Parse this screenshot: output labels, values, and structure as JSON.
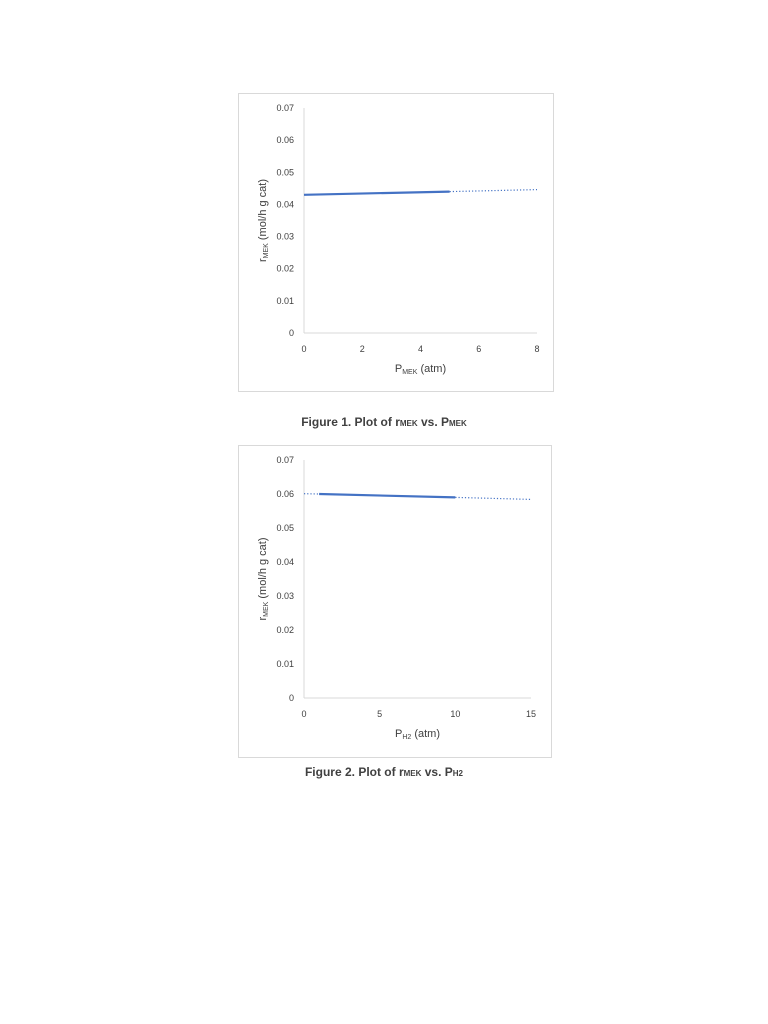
{
  "chart_data": [
    {
      "type": "line",
      "xlabel": {
        "main": "P",
        "sub": "MEK",
        "tail": " (atm)"
      },
      "ylabel": {
        "main": "r",
        "sub": "MEK",
        "tail": " (mol/h g cat)"
      },
      "xlim": [
        0,
        8
      ],
      "ylim": [
        0,
        0.07
      ],
      "x_ticks": [
        "0",
        "2",
        "4",
        "6",
        "8"
      ],
      "y_ticks": [
        "0",
        "0.01",
        "0.02",
        "0.03",
        "0.04",
        "0.05",
        "0.06",
        "0.07"
      ],
      "grid": false,
      "legend": "none",
      "series": [
        {
          "style": "solid",
          "color": "#4472c4",
          "x": [
            0,
            5
          ],
          "y": [
            0.043,
            0.044
          ]
        },
        {
          "style": "dotted",
          "color": "#4472c4",
          "x": [
            5,
            8
          ],
          "y": [
            0.044,
            0.0446
          ]
        }
      ]
    },
    {
      "type": "line",
      "xlabel": {
        "main": "P",
        "sub": "H2",
        "tail": " (atm)"
      },
      "ylabel": {
        "main": "r",
        "sub": "MEK",
        "tail": " (mol/h g cat)"
      },
      "xlim": [
        0,
        15
      ],
      "ylim": [
        0,
        0.07
      ],
      "x_ticks": [
        "0",
        "5",
        "10",
        "15"
      ],
      "y_ticks": [
        "0",
        "0.01",
        "0.02",
        "0.03",
        "0.04",
        "0.05",
        "0.06",
        "0.07"
      ],
      "grid": false,
      "legend": "none",
      "series": [
        {
          "style": "dotted",
          "color": "#4472c4",
          "x": [
            0,
            1
          ],
          "y": [
            0.0601,
            0.06
          ]
        },
        {
          "style": "solid",
          "color": "#4472c4",
          "x": [
            1,
            10
          ],
          "y": [
            0.06,
            0.059
          ]
        },
        {
          "style": "dotted",
          "color": "#4472c4",
          "x": [
            10,
            15
          ],
          "y": [
            0.059,
            0.0584
          ]
        }
      ]
    }
  ],
  "captions": [
    {
      "prefix": "Figure 1. Plot of r",
      "sub1": "MEK",
      "mid": " vs. P",
      "sub2": "MEK"
    },
    {
      "prefix": "Figure 2. Plot of r",
      "sub1": "MEK",
      "mid": " vs. P",
      "sub2": "H2"
    }
  ]
}
